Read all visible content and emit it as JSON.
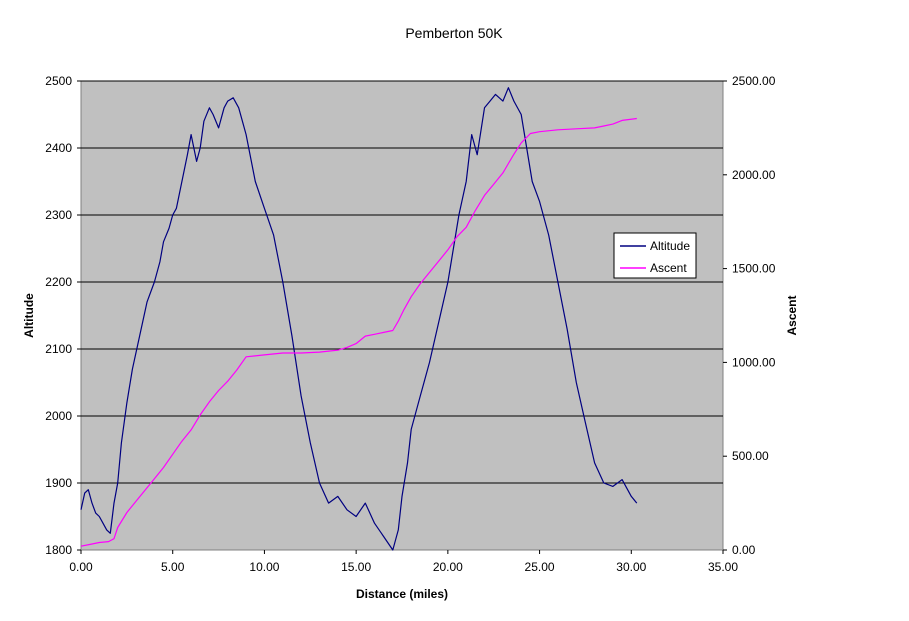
{
  "chart_data": {
    "type": "line",
    "title": "Pemberton 50K",
    "xlabel": "Distance (miles)",
    "ylabel": "Altitude",
    "y2label": "Ascent",
    "xlim": [
      0,
      35
    ],
    "ylim": [
      1800,
      2500
    ],
    "y2lim": [
      0,
      2500
    ],
    "x_ticks": [
      "0.00",
      "5.00",
      "10.00",
      "15.00",
      "20.00",
      "25.00",
      "30.00",
      "35.00"
    ],
    "y_ticks": [
      "1800",
      "1900",
      "2000",
      "2100",
      "2200",
      "2300",
      "2400",
      "2500"
    ],
    "y2_ticks": [
      "0.00",
      "500.00",
      "1000.00",
      "1500.00",
      "2000.00",
      "2500.00"
    ],
    "grid": true,
    "legend": "right",
    "plot_background": "#c0c0c0",
    "series": [
      {
        "name": "Altitude",
        "axis": "left",
        "color": "#000080",
        "x": [
          0,
          0.2,
          0.4,
          0.6,
          0.8,
          1.0,
          1.2,
          1.4,
          1.6,
          1.8,
          2.0,
          2.2,
          2.5,
          2.8,
          3.2,
          3.6,
          4.0,
          4.3,
          4.5,
          4.8,
          5.0,
          5.2,
          5.5,
          5.8,
          6.0,
          6.3,
          6.5,
          6.7,
          7.0,
          7.2,
          7.5,
          7.8,
          8.0,
          8.3,
          8.6,
          9.0,
          9.5,
          10.0,
          10.5,
          11.0,
          11.5,
          12.0,
          12.5,
          13.0,
          13.5,
          14.0,
          14.5,
          15.0,
          15.5,
          16.0,
          16.5,
          17.0,
          17.3,
          17.5,
          17.8,
          18.0,
          18.5,
          19.0,
          19.5,
          20.0,
          20.3,
          20.6,
          21.0,
          21.3,
          21.6,
          22.0,
          22.3,
          22.6,
          23.0,
          23.3,
          23.6,
          24.0,
          24.3,
          24.6,
          25.0,
          25.5,
          26.0,
          26.5,
          27.0,
          27.5,
          28.0,
          28.5,
          29.0,
          29.5,
          30.0,
          30.3
        ],
        "y": [
          1860,
          1885,
          1890,
          1870,
          1855,
          1850,
          1840,
          1830,
          1825,
          1870,
          1900,
          1960,
          2020,
          2070,
          2120,
          2170,
          2200,
          2230,
          2260,
          2280,
          2300,
          2310,
          2350,
          2390,
          2420,
          2380,
          2400,
          2440,
          2460,
          2450,
          2430,
          2460,
          2470,
          2475,
          2460,
          2420,
          2350,
          2310,
          2270,
          2200,
          2120,
          2030,
          1960,
          1900,
          1870,
          1880,
          1860,
          1850,
          1870,
          1840,
          1820,
          1800,
          1830,
          1880,
          1930,
          1980,
          2030,
          2080,
          2140,
          2200,
          2250,
          2300,
          2350,
          2420,
          2390,
          2460,
          2470,
          2480,
          2470,
          2490,
          2470,
          2450,
          2400,
          2350,
          2320,
          2270,
          2200,
          2130,
          2050,
          1990,
          1930,
          1900,
          1895,
          1905,
          1880,
          1870
        ]
      },
      {
        "name": "Ascent",
        "axis": "right",
        "color": "#ff00ff",
        "x": [
          0,
          0.5,
          1.0,
          1.5,
          1.8,
          2.0,
          2.5,
          3.0,
          3.5,
          4.0,
          4.5,
          5.0,
          5.5,
          6.0,
          6.5,
          7.0,
          7.5,
          8.0,
          8.5,
          9.0,
          10.0,
          11.0,
          12.0,
          13.0,
          13.5,
          14.0,
          14.5,
          15.0,
          15.5,
          16.0,
          16.5,
          17.0,
          17.3,
          17.6,
          18.0,
          18.5,
          19.0,
          19.5,
          20.0,
          20.5,
          21.0,
          21.5,
          22.0,
          22.5,
          23.0,
          23.3,
          23.6,
          24.0,
          24.5,
          25.0,
          26.0,
          27.0,
          28.0,
          28.5,
          29.0,
          29.5,
          30.3
        ],
        "y": [
          20,
          30,
          40,
          45,
          60,
          120,
          200,
          260,
          320,
          380,
          440,
          510,
          580,
          640,
          720,
          790,
          850,
          900,
          960,
          1030,
          1040,
          1050,
          1050,
          1055,
          1060,
          1065,
          1080,
          1100,
          1140,
          1150,
          1160,
          1170,
          1220,
          1280,
          1350,
          1420,
          1480,
          1540,
          1600,
          1670,
          1720,
          1810,
          1890,
          1950,
          2010,
          2060,
          2110,
          2170,
          2220,
          2230,
          2240,
          2245,
          2250,
          2260,
          2270,
          2290,
          2300
        ]
      }
    ]
  }
}
